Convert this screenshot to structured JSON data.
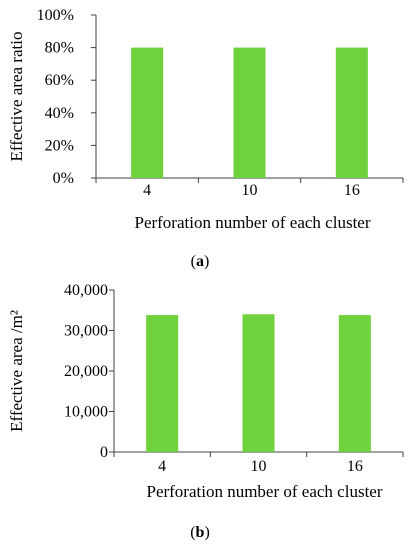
{
  "colors": {
    "bar": "#6fd13c",
    "axis": "#404040",
    "text": "#000000"
  },
  "chart_data": [
    {
      "type": "bar",
      "panel_label": "a",
      "categories": [
        "4",
        "10",
        "16"
      ],
      "values": [
        80,
        80,
        80
      ],
      "xlabel": "Perforation number of each cluster",
      "ylabel": "Effective area ratio",
      "ylim": [
        0,
        100
      ],
      "yticks": [
        "0%",
        "20%",
        "40%",
        "60%",
        "80%",
        "100%"
      ],
      "grid": false,
      "legend": "none"
    },
    {
      "type": "bar",
      "panel_label": "b",
      "categories": [
        "4",
        "10",
        "16"
      ],
      "values": [
        33800,
        34000,
        33800
      ],
      "xlabel": "Perforation number of each cluster",
      "ylabel": "Effective area /m²",
      "ylim": [
        0,
        40000
      ],
      "yticks": [
        "0",
        "10,000",
        "20,000",
        "30,000",
        "40,000"
      ],
      "grid": false,
      "legend": "none"
    }
  ]
}
